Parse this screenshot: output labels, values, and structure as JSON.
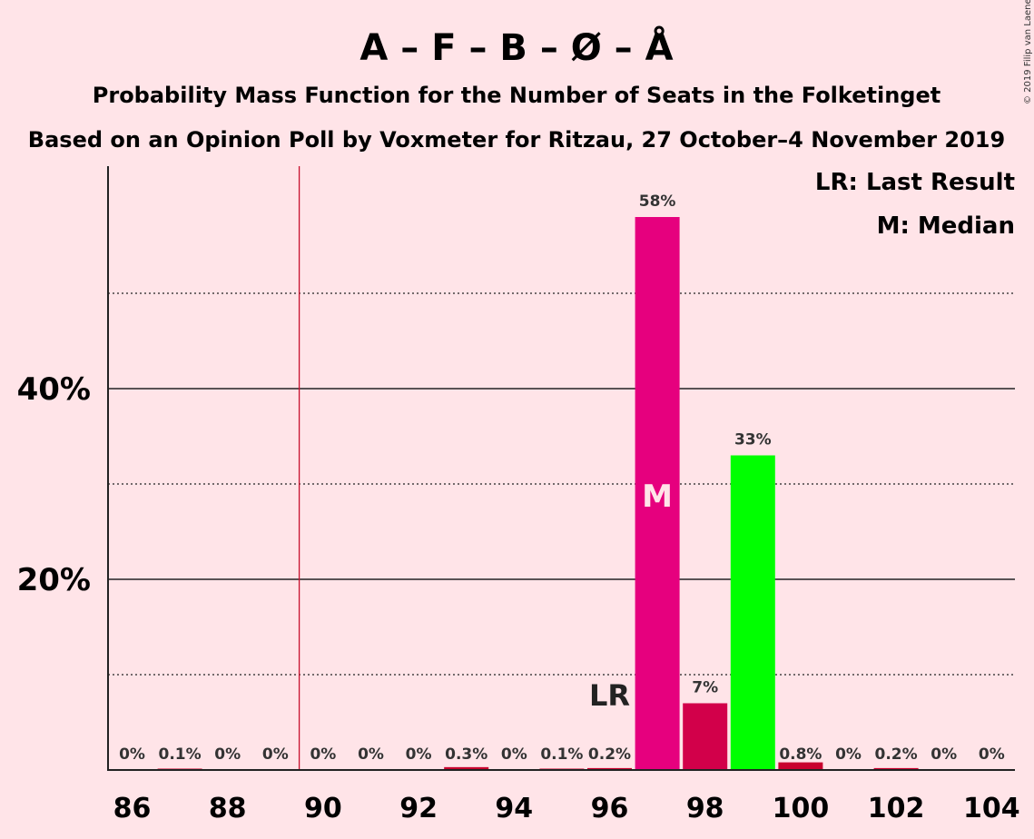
{
  "chart_data": {
    "type": "bar",
    "title": "A – F – B – Ø – Å",
    "subtitle": "Probability Mass Function for the Number of Seats in the Folketinget",
    "subtitle2": "Based on an Opinion Poll by Voxmeter for Ritzau, 27 October–4 November 2019",
    "credit": "© 2019 Filip van Laenen",
    "x": [
      86,
      87,
      88,
      89,
      90,
      91,
      92,
      93,
      94,
      95,
      96,
      97,
      98,
      99,
      100,
      101,
      102,
      103,
      104
    ],
    "values": [
      0,
      0.1,
      0,
      0,
      0,
      0,
      0,
      0.3,
      0,
      0.1,
      0.2,
      58,
      7,
      33,
      0.8,
      0,
      0.2,
      0,
      0
    ],
    "value_labels": [
      "0%",
      "0.1%",
      "0%",
      "0%",
      "0%",
      "0%",
      "0%",
      "0.3%",
      "0%",
      "0.1%",
      "0.2%",
      "58%",
      "7%",
      "33%",
      "0.8%",
      "0%",
      "0.2%",
      "0%",
      "0%"
    ],
    "x_tick_labels": [
      "86",
      "88",
      "90",
      "92",
      "94",
      "96",
      "98",
      "100",
      "102",
      "104"
    ],
    "x_tick_values": [
      86,
      88,
      90,
      92,
      94,
      96,
      98,
      100,
      102,
      104
    ],
    "y_tick_labels": [
      "20%",
      "40%"
    ],
    "y_tick_values": [
      20,
      40
    ],
    "y_dotted_values": [
      10,
      30,
      50
    ],
    "ylim": [
      0,
      63
    ],
    "grid": true,
    "last_result_seat": 89.5,
    "last_result_label": "LR",
    "last_result_label_seat": 96,
    "median_seat": 97,
    "median_label": "M",
    "legend": [
      "LR: Last Result",
      "M: Median"
    ],
    "legend_position": "top-right",
    "colors": {
      "default": "#C8002D",
      "median": "#E6007E",
      "seat98": "#D2004A",
      "seat99": "#00FF00",
      "last_result_line": "#C8102E",
      "background": "#FFE4E8"
    }
  }
}
